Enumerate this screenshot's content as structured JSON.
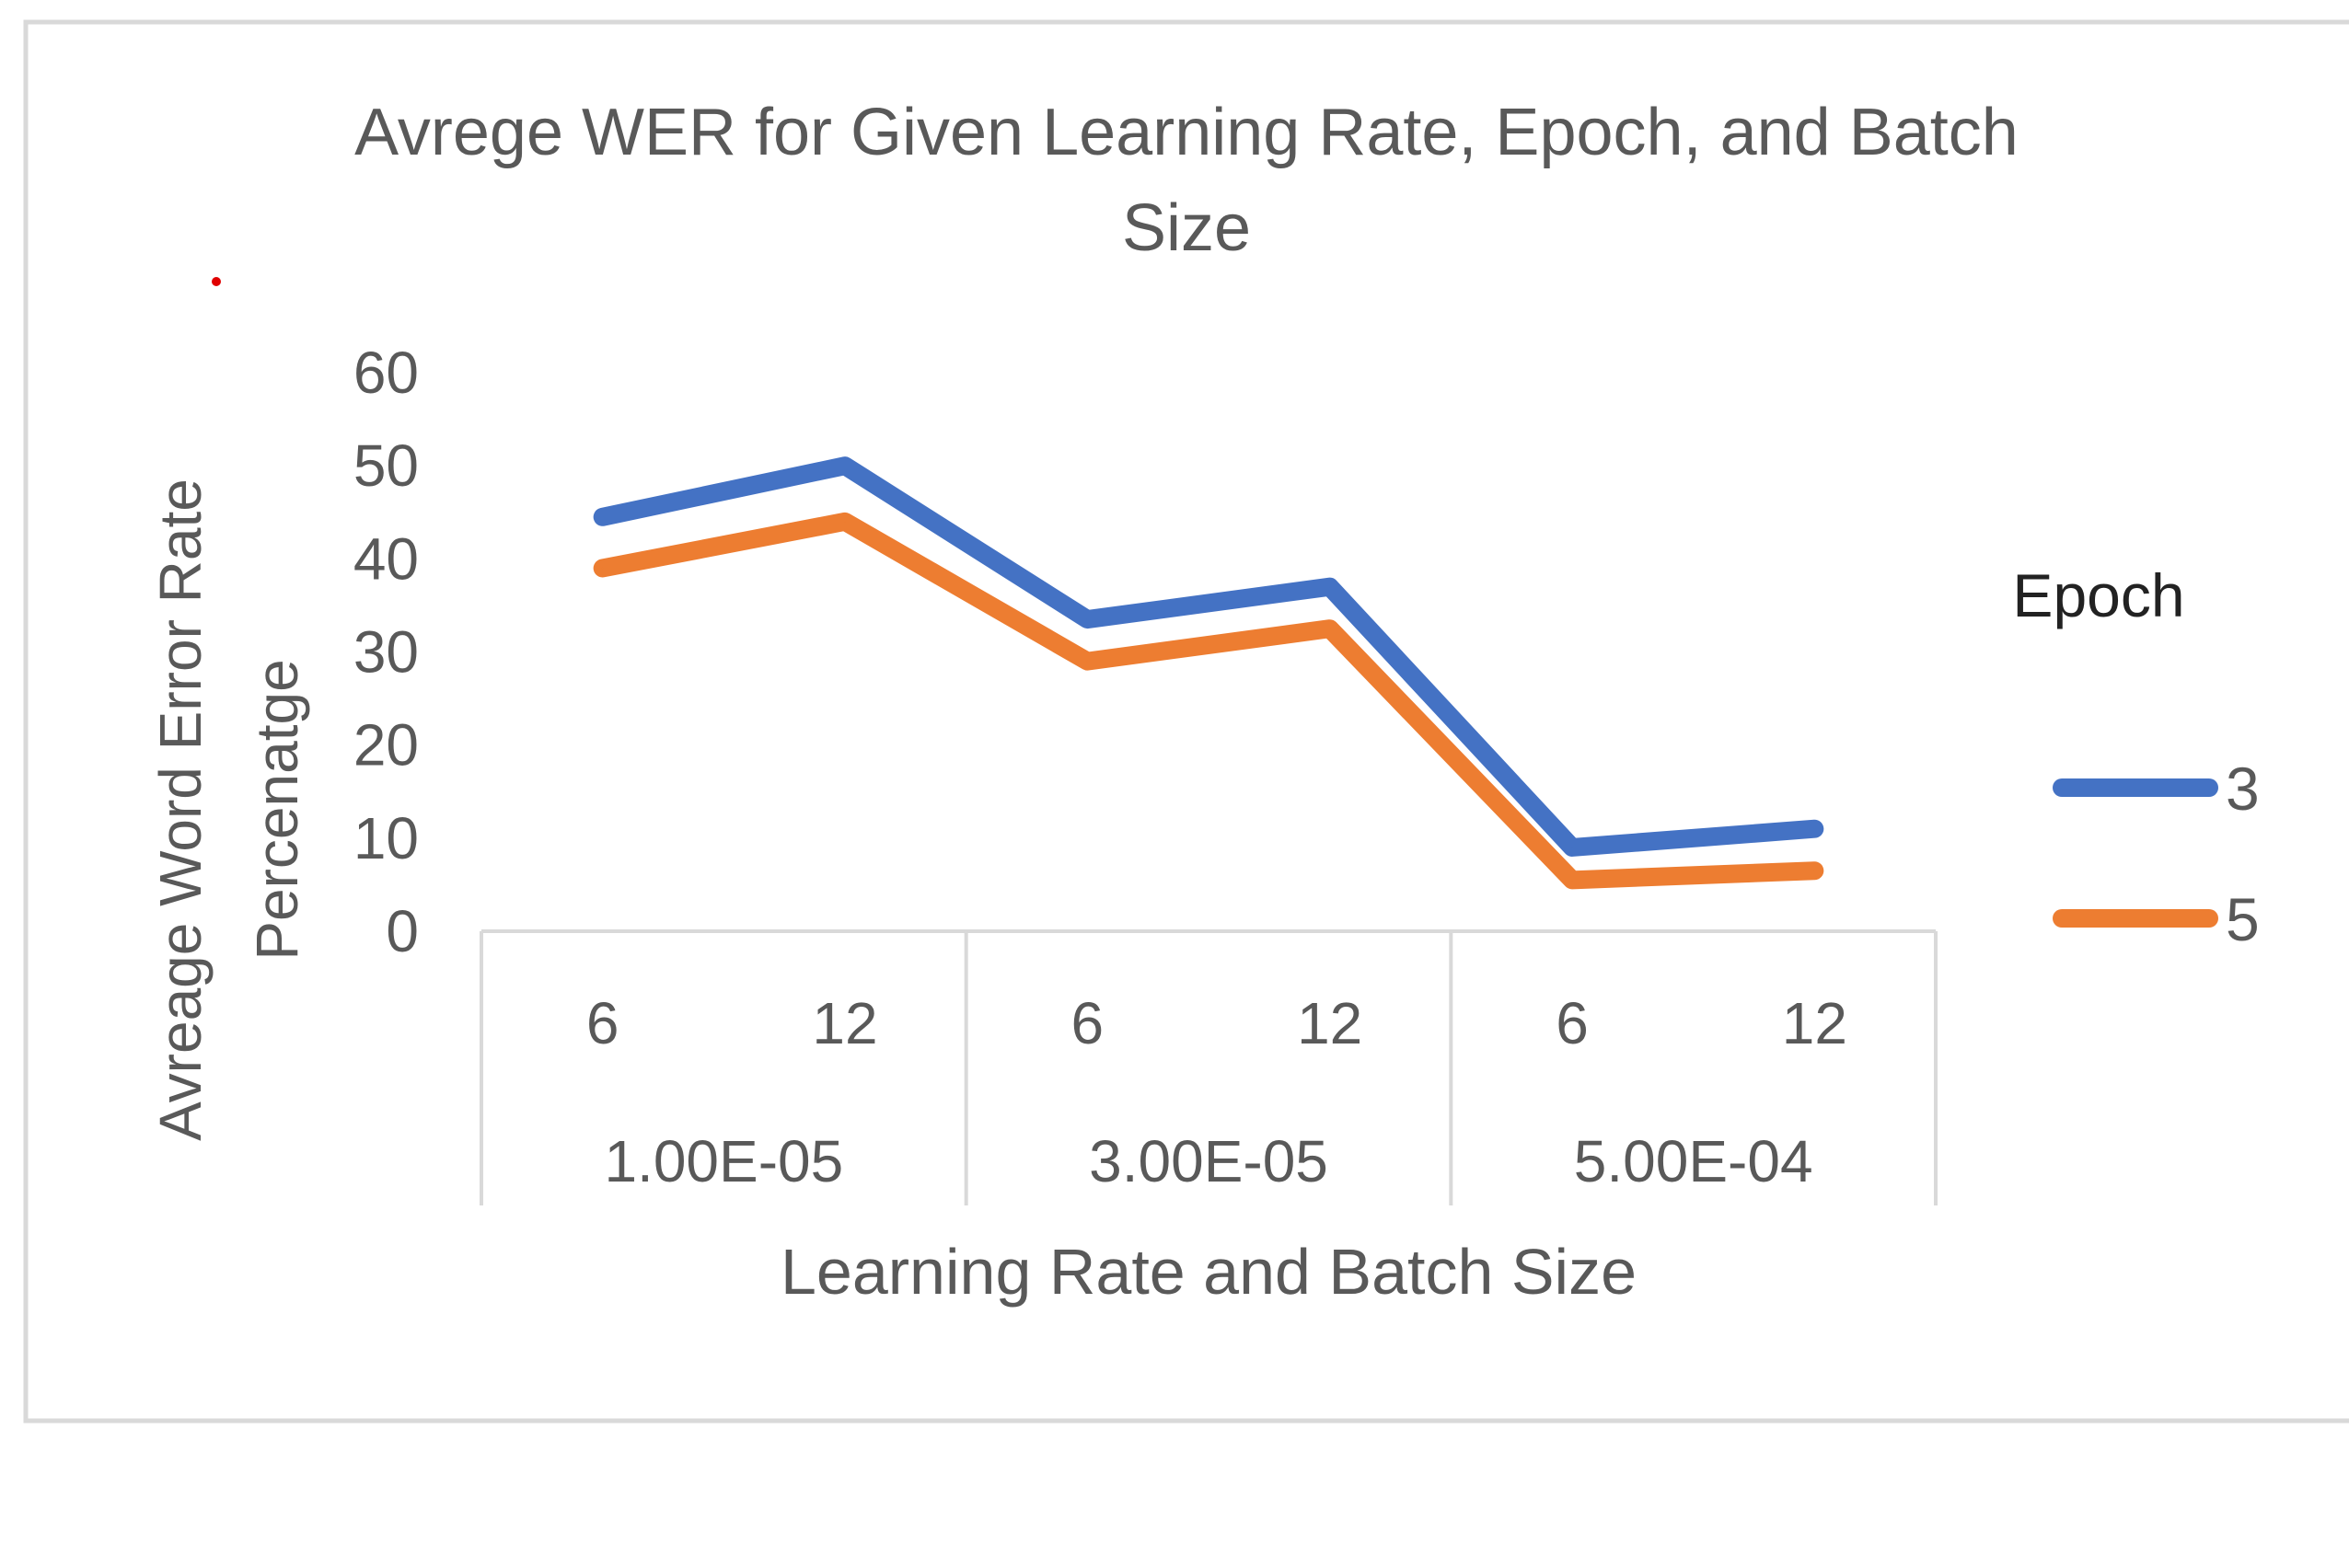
{
  "chart_data": {
    "type": "line",
    "title": "Avrege WER for Given Learning Rate, Epoch, and Batch Size",
    "title_lines": [
      "Avrege WER for Given Learning Rate, Epoch, and Batch",
      "Size"
    ],
    "xlabel": "Learning Rate and Batch Size",
    "ylabel_lines": [
      "Avreage Word Error Rate",
      "Percenatge"
    ],
    "ylim": [
      0,
      60
    ],
    "yticks": [
      "0",
      "10",
      "20",
      "30",
      "40",
      "50",
      "60"
    ],
    "grid": false,
    "categories": [
      {
        "batch": "6",
        "rate": "1.00E-05"
      },
      {
        "batch": "12",
        "rate": "1.00E-05"
      },
      {
        "batch": "6",
        "rate": "3.00E-05"
      },
      {
        "batch": "12",
        "rate": "3.00E-05"
      },
      {
        "batch": "6",
        "rate": "5.00E-04"
      },
      {
        "batch": "12",
        "rate": "5.00E-04"
      }
    ],
    "groups": [
      "1.00E-05",
      "3.00E-05",
      "5.00E-04"
    ],
    "legend": {
      "title": "Epoch",
      "position": "right"
    },
    "series": [
      {
        "name": "3",
        "color": "#4472C4",
        "values": [
          44.5,
          50,
          33.5,
          37,
          9,
          11
        ]
      },
      {
        "name": "5",
        "color": "#ED7D31",
        "values": [
          39,
          44,
          29,
          32.5,
          5.5,
          6.5
        ]
      }
    ]
  }
}
